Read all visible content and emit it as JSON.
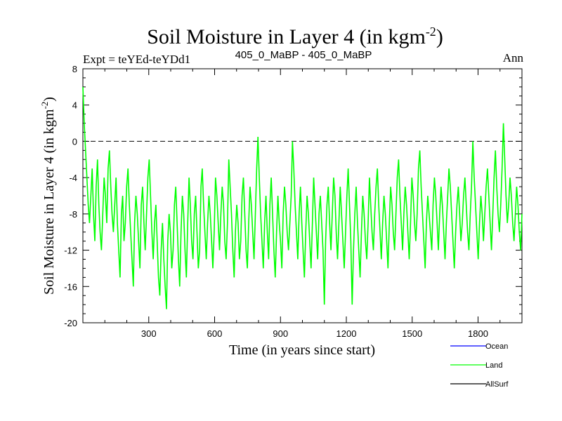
{
  "chart_data": {
    "type": "line",
    "title_main": "Soil Moisture in Layer 4 (in kgm",
    "title_sup": "-2",
    "title_close": ")",
    "subtitle_left": "Expt = teYEd-teYDd1",
    "subtitle_center": "405_0_MaBP - 405_0_MaBP",
    "subtitle_right": "Ann",
    "xlabel": "Time (in years since start)",
    "ylabel_main": "Soil Moisture in Layer 4 (in kgm",
    "ylabel_sup": "-2",
    "ylabel_close": ")",
    "xlim": [
      0,
      2000
    ],
    "ylim": [
      -20,
      8
    ],
    "x_ticks": [
      300,
      600,
      900,
      1200,
      1500,
      1800
    ],
    "y_ticks": [
      8,
      4,
      0,
      -4,
      -8,
      -12,
      -16,
      -20
    ],
    "reference_line": 0,
    "legend": [
      {
        "name": "Ocean",
        "color": "#0000ff"
      },
      {
        "name": "Land",
        "color": "#00ff00"
      },
      {
        "name": "AllSurf",
        "color": "#000000"
      }
    ],
    "series": [
      {
        "name": "Land",
        "color": "#00ff00",
        "x_start": 0,
        "x_end": 2000,
        "values": [
          6,
          2,
          -1,
          -4,
          -7,
          -9,
          -6,
          -3,
          -8,
          -11,
          -5,
          -2,
          -7,
          -10,
          -12,
          -8,
          -4,
          -6,
          -9,
          -3,
          -1,
          -5,
          -8,
          -10,
          -7,
          -4,
          -9,
          -12,
          -15,
          -8,
          -6,
          -11,
          -9,
          -5,
          -3,
          -7,
          -10,
          -13,
          -16,
          -9,
          -6,
          -8,
          -11,
          -14,
          -7,
          -5,
          -9,
          -12,
          -8,
          -4,
          -2,
          -6,
          -10,
          -13,
          -9,
          -7,
          -11,
          -15,
          -17,
          -12,
          -9,
          -13,
          -16,
          -18.5,
          -11,
          -8,
          -10,
          -14,
          -12,
          -7,
          -5,
          -9,
          -13,
          -16,
          -10,
          -6,
          -8,
          -12,
          -15,
          -9,
          -4,
          -7,
          -11,
          -13,
          -8,
          -6,
          -10,
          -14,
          -12,
          -5,
          -3,
          -7,
          -10,
          -13,
          -9,
          -6,
          -8,
          -11,
          -14,
          -10,
          -4,
          -6,
          -9,
          -12,
          -8,
          -5,
          -7,
          -11,
          -13,
          -9,
          -2,
          -5,
          -8,
          -12,
          -15,
          -10,
          -7,
          -9,
          -13,
          -11,
          -6,
          -4,
          -8,
          -12,
          -14,
          -9,
          -5,
          -7,
          -10,
          -13,
          -8,
          -3,
          0.5,
          -4,
          -8,
          -11,
          -14,
          -9,
          -6,
          -10,
          -13,
          -7,
          -4,
          -8,
          -12,
          -15,
          -10,
          -6,
          -9,
          -11,
          -14,
          -8,
          -5,
          -7,
          -10,
          -12,
          -9,
          -6,
          0,
          -3,
          -7,
          -10,
          -13,
          -8,
          -5,
          -9,
          -12,
          -15,
          -10,
          -6,
          -8,
          -11,
          -14,
          -9,
          -4,
          -7,
          -10,
          -13,
          -8,
          -6,
          -9,
          -12,
          -18,
          -11,
          -7,
          -5,
          -9,
          -12,
          -8,
          -4,
          -6,
          -10,
          -13,
          -9,
          -5,
          -8,
          -11,
          -14,
          -10,
          -6,
          -3,
          -7,
          -11,
          -18,
          -12,
          -8,
          -5,
          -9,
          -12,
          -15,
          -10,
          -6,
          -8,
          -11,
          -13,
          -9,
          -4,
          -7,
          -10,
          -12,
          -8,
          -5,
          -3,
          -7,
          -10,
          -13,
          -9,
          -6,
          -8,
          -11,
          -14,
          -9,
          -5,
          -7,
          -10,
          -12,
          -8,
          -4,
          -2,
          -6,
          -9,
          -12,
          -8,
          -5,
          -7,
          -10,
          -13,
          -9,
          -4,
          -6,
          -9,
          -11,
          -8,
          -3,
          -1,
          -5,
          -8,
          -11,
          -14,
          -9,
          -6,
          -8,
          -10,
          -12,
          -7,
          -4,
          -6,
          -9,
          -12,
          -8,
          -5,
          -7,
          -10,
          -13,
          -9,
          -6,
          -3,
          -5,
          -8,
          -11,
          -14,
          -10,
          -7,
          -5,
          -8,
          -11,
          -9,
          -6,
          -4,
          -7,
          -10,
          -12,
          -8,
          -5,
          0,
          -4,
          -7,
          -10,
          -13,
          -9,
          -6,
          -8,
          -11,
          -8,
          -5,
          -3,
          -6,
          -9,
          -12,
          -8,
          -4,
          -1,
          -5,
          -8,
          -10,
          -7,
          -3,
          2,
          -2,
          -6,
          -9,
          -7,
          -4,
          -6,
          -9,
          -11,
          -8,
          -5,
          -7,
          -10,
          -12,
          -8
        ]
      }
    ]
  }
}
